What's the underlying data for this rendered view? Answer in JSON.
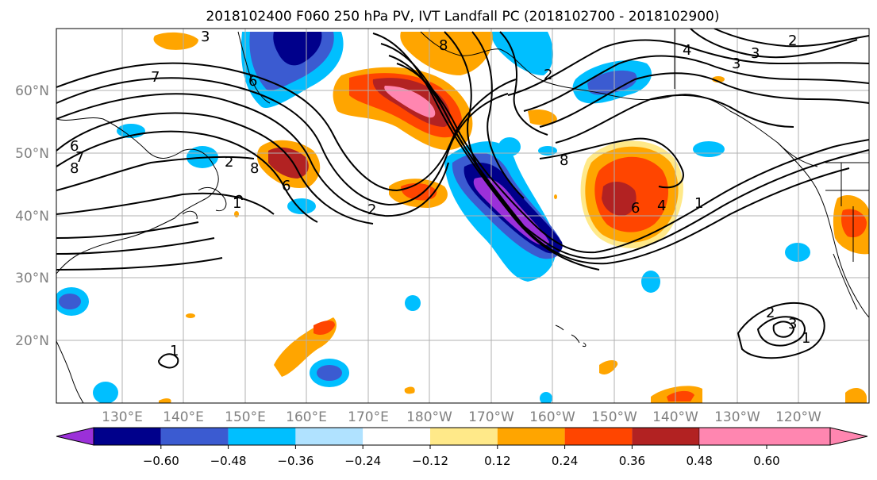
{
  "title": "2018102400 F060 250 hPa PV, IVT Landfall PC (2018102700 - 2018102900)",
  "lat_labels": [
    "60°N",
    "50°N",
    "40°N",
    "30°N",
    "20°N"
  ],
  "lon_labels": [
    "130°E",
    "140°E",
    "150°E",
    "160°E",
    "170°E",
    "180°W",
    "170°W",
    "160°W",
    "150°W",
    "140°W",
    "130°W",
    "120°W"
  ],
  "colorbar": {
    "tick_labels": [
      "−0.60",
      "−0.48",
      "−0.36",
      "−0.24",
      "−0.12",
      "0.12",
      "0.24",
      "0.36",
      "0.48",
      "0.60"
    ],
    "colors": [
      "#9b30d9",
      "#00008b",
      "#3b5bd1",
      "#00bfff",
      "#b0e2ff",
      "#ffffff",
      "#ffe989",
      "#ffa500",
      "#ff4500",
      "#b22222",
      "#ff86b0"
    ]
  },
  "contour_labels": [
    "3",
    "7",
    "6",
    "8",
    "7",
    "8",
    "6",
    "2",
    "1",
    "2",
    "8",
    "6",
    "2",
    "2",
    "3",
    "4",
    "3",
    "8",
    "6",
    "4",
    "1",
    "2",
    "3",
    "1",
    "1"
  ]
}
